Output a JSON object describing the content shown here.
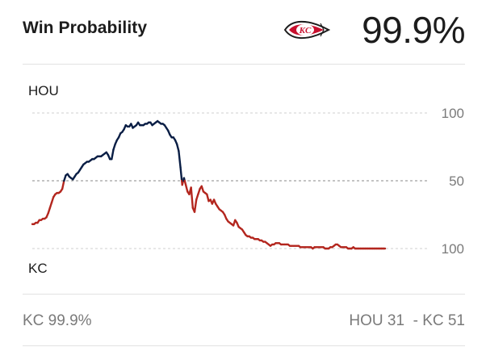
{
  "header": {
    "title": "Win Probability",
    "logo_icon": "kc-chiefs-arrowhead-icon",
    "win_probability": "99.9%"
  },
  "chart_data": {
    "type": "line",
    "title": "",
    "top_team": "HOU",
    "bottom_team": "KC",
    "y_tick_labels": [
      "100",
      "50",
      "100"
    ],
    "ylim": [
      0,
      100
    ],
    "midline": 50,
    "series": [
      {
        "name": "Win probability",
        "note": "y = HOU win probability (%); above 50 drawn in HOU navy, below 50 in KC red",
        "x": [
          0,
          1,
          2,
          3,
          4,
          5,
          6,
          7,
          8,
          9,
          10,
          11,
          12,
          13,
          14,
          15,
          16,
          17,
          18,
          19,
          20,
          21,
          22,
          23,
          24,
          25,
          26,
          27,
          28,
          29,
          30,
          31,
          32,
          33,
          34,
          35,
          36,
          37,
          38,
          39,
          40,
          41,
          42,
          43,
          44,
          45,
          46,
          47,
          48,
          49,
          50,
          51,
          52,
          53,
          54,
          55,
          56,
          57,
          58,
          59,
          60,
          61,
          62,
          63,
          64,
          65,
          66,
          67,
          68,
          69,
          70,
          71,
          72,
          73,
          74,
          75,
          76,
          77,
          78,
          79,
          80,
          81,
          82,
          83,
          84,
          85,
          86,
          87,
          88,
          89,
          90,
          91,
          92,
          93,
          94,
          95,
          96,
          97,
          98,
          99,
          100,
          101,
          102,
          103,
          104,
          105,
          106,
          107,
          108,
          109,
          110,
          111,
          112,
          113,
          114,
          115,
          116,
          117,
          118,
          119,
          120,
          121,
          122,
          123,
          124,
          125,
          126,
          127,
          128,
          129,
          130,
          131,
          132,
          133,
          134,
          135,
          136,
          137,
          138,
          139,
          140,
          141,
          142,
          143,
          144,
          145,
          146,
          147,
          148,
          149,
          150,
          151,
          152,
          153,
          154,
          155,
          156,
          157,
          158,
          159,
          160,
          161,
          162,
          163,
          164,
          165,
          166,
          167,
          168,
          169,
          170,
          171,
          172,
          173,
          174,
          175,
          176,
          177,
          178,
          179,
          180,
          181,
          182,
          183,
          184,
          185,
          186,
          187,
          188,
          189,
          190,
          191,
          192,
          193,
          194,
          195,
          196,
          197,
          198,
          199,
          200
        ],
        "y": [
          18,
          18,
          19,
          19,
          21,
          21,
          22,
          22,
          23,
          26,
          30,
          34,
          38,
          40,
          41,
          41,
          42,
          44,
          50,
          54,
          55,
          53,
          52,
          51,
          53,
          55,
          56,
          58,
          60,
          62,
          63,
          64,
          64,
          65,
          66,
          66,
          67,
          68,
          68,
          68,
          69,
          70,
          71,
          69,
          66,
          66,
          73,
          77,
          80,
          82,
          85,
          86,
          88,
          91,
          90,
          90,
          92,
          89,
          90,
          91,
          93,
          91,
          91,
          91,
          92,
          92,
          93,
          93,
          91,
          92,
          93,
          94,
          93,
          92,
          92,
          91,
          89,
          87,
          84,
          82,
          82,
          80,
          77,
          72,
          60,
          47,
          52,
          47,
          42,
          40,
          45,
          30,
          27,
          36,
          40,
          44,
          46,
          42,
          41,
          40,
          35,
          36,
          33,
          36,
          33,
          31,
          29,
          28,
          27,
          25,
          22,
          20,
          19,
          18,
          17,
          21,
          19,
          16,
          15,
          14,
          12,
          10,
          9,
          9,
          8,
          8,
          7,
          7,
          7,
          6,
          6,
          5,
          5,
          4,
          3,
          2,
          3,
          3,
          4,
          4,
          4,
          3,
          3,
          3,
          3,
          3,
          2,
          2,
          2,
          2,
          2,
          2,
          1,
          1,
          1,
          1,
          1,
          1,
          1,
          0,
          1,
          1,
          1,
          1,
          1,
          1,
          0,
          0,
          0,
          1,
          1,
          2,
          3,
          3,
          2,
          1,
          1,
          1,
          1,
          0,
          0,
          0,
          1,
          0,
          0,
          0,
          0,
          0,
          0,
          0,
          0,
          0,
          0,
          0,
          0,
          0,
          0,
          0,
          0,
          0,
          0
        ]
      }
    ]
  },
  "footer": {
    "left": "KC 99.9%",
    "right": "HOU 31  - KC 51"
  },
  "colors": {
    "hou": "#0a1e45",
    "kc": "#b3261e",
    "grid": "#b5b5b5",
    "muted": "#7a7a7a"
  }
}
